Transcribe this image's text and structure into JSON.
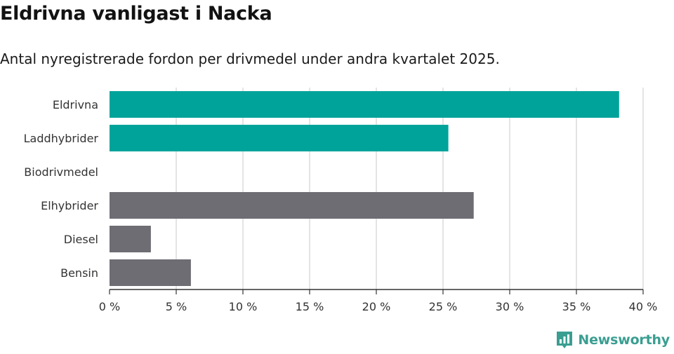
{
  "header": {
    "title": "Eldrivna vanligast i Nacka",
    "subtitle": "Antal nyregistrerade fordon per drivmedel under andra kvartalet 2025."
  },
  "brand": {
    "name": "Newsworthy",
    "icon": "newsworthy-logo-icon",
    "color": "#3a9e91"
  },
  "chart_data": {
    "type": "bar",
    "orientation": "horizontal",
    "title": "",
    "xlabel": "",
    "ylabel": "",
    "categories": [
      "Eldrivna",
      "Laddhybrider",
      "Biodrivmedel",
      "Elhybrider",
      "Diesel",
      "Bensin"
    ],
    "values": [
      38.2,
      25.4,
      0,
      27.3,
      3.1,
      6.1
    ],
    "colors": [
      "#00a39a",
      "#00a39a",
      "#00a39a",
      "#6e6d73",
      "#6e6d73",
      "#6e6d73"
    ],
    "xlim": [
      0,
      40
    ],
    "xticks": [
      0,
      5,
      10,
      15,
      20,
      25,
      30,
      35,
      40
    ],
    "xtick_labels": [
      "0 %",
      "5 %",
      "10 %",
      "15 %",
      "20 %",
      "25 %",
      "30 %",
      "35 %",
      "40 %"
    ],
    "grid": true,
    "legend": "none"
  }
}
